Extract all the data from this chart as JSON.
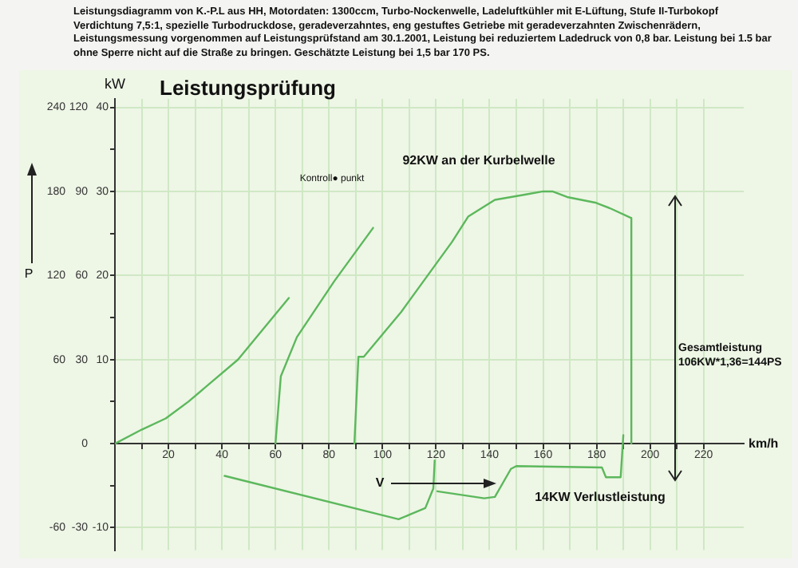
{
  "chart_data": {
    "type": "line",
    "title": "Leistungsprüfung",
    "subtitle": "Leistungsdiagramm von K.-P.L aus HH, Motordaten: 1300ccm, Turbo-Nockenwelle, Ladeluftkühler mit E-Lüftung, Stufe II-Turbokopf Verdichtung 7,5:1, spezielle Turbodruckdose, geradeverzahntes, eng gestuftes Getriebe mit geradeverzahnten Zwischenrädern, Leistungsmessung vorgenommen auf Leistungsprüfstand am 30.1.2001, Leistung bei reduziertem Ladedruck von 0,8 bar. Leistung bei 1.5 bar ohne Sperre nicht auf die Straße zu bringen. Geschätzte Leistung bei 1,5 bar 170 PS.",
    "xlabel": "km/h",
    "y2label": "P",
    "series": [
      {
        "color": "#5cb85c",
        "x": [
          0,
          10,
          19,
          27.5,
          46,
          65
        ],
        "values": [
          0,
          5,
          9,
          15,
          30,
          52
        ]
      },
      {
        "color": "#5cb85c",
        "x": [
          60,
          62,
          68,
          82,
          96.5
        ],
        "values": [
          0,
          24,
          38,
          58,
          77
        ]
      },
      {
        "color": "#5cb85c",
        "x": [
          89.5,
          91,
          93,
          107,
          126,
          132,
          142,
          148,
          154,
          160,
          163.5,
          169,
          179.5,
          185,
          193,
          193
        ],
        "values": [
          0,
          31,
          31,
          47,
          72,
          81,
          87,
          88,
          89,
          90,
          90,
          88,
          86,
          84,
          80.5,
          0
        ]
      },
      {
        "color": "#5cb85c",
        "x": [
          41,
          106,
          111,
          116,
          119,
          119.5
        ],
        "values": [
          -11.5,
          -27,
          -25,
          -23,
          -16,
          -6
        ]
      },
      {
        "color": "#5cb85c",
        "x": [
          120.5,
          138,
          142,
          148,
          150,
          182,
          183.5,
          189,
          190
        ],
        "values": [
          -17,
          -19.5,
          -19,
          -9,
          -8,
          -8.5,
          -12,
          -12,
          3
        ]
      }
    ],
    "xlim": [
      0,
      235
    ],
    "ylim": [
      -38,
      123
    ],
    "y2lim": [
      -76,
      246
    ],
    "y3lim": [
      -12.667,
      41
    ],
    "xticks": [
      {
        "value": 10,
        "label": null
      },
      20,
      {
        "value": 30,
        "label": null
      },
      40,
      {
        "value": 50,
        "label": null
      },
      60,
      {
        "value": 70,
        "label": null
      },
      80,
      {
        "value": 90,
        "label": null
      },
      100,
      {
        "value": 110,
        "label": null
      },
      120,
      {
        "value": 130,
        "label": null
      },
      140,
      {
        "value": 150,
        "label": null
      },
      160,
      {
        "value": 170,
        "label": null
      },
      180,
      {
        "value": 190,
        "label": null
      },
      200,
      {
        "value": 210,
        "label": null
      },
      220
    ],
    "yticks": [
      -30,
      0,
      30,
      60,
      90,
      120
    ],
    "y2ticks": [
      -60,
      60,
      120,
      180,
      240
    ],
    "y3ticks": [
      -10,
      {
        "value": -5,
        "label": null
      },
      {
        "value": 0,
        "label": null
      },
      {
        "value": 5,
        "label": null
      },
      10,
      {
        "value": 15,
        "label": null
      },
      20,
      {
        "value": 25,
        "label": null
      },
      30,
      {
        "value": 35,
        "label": null
      },
      40
    ],
    "grid": true,
    "marker": "none",
    "line_style": "solid",
    "legend": false,
    "annotations": [
      "kW",
      "92KW an der Kurbelwelle",
      "Kontroll● punkt",
      "Gesamtleistung\n106KW*1,36=144PS",
      "14KW Verlustleistung",
      "V"
    ]
  }
}
